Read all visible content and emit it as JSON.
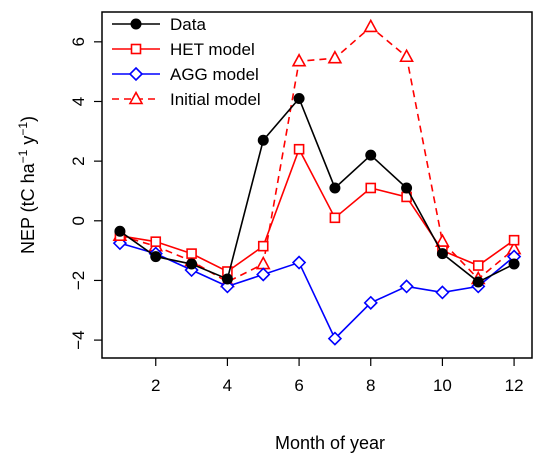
{
  "chart_data": {
    "type": "line",
    "xlabel": "Month of year",
    "ylabel_main": "NEP (tC ha",
    "ylabel_sup1": "−1",
    "ylabel_mid": " y",
    "ylabel_sup2": "−1",
    "ylabel_end": ")",
    "xlim": [
      0.5,
      12.5
    ],
    "ylim": [
      -4.6,
      7.0
    ],
    "xticks": [
      2,
      4,
      6,
      8,
      10,
      12
    ],
    "yticks": [
      -4,
      -2,
      0,
      2,
      4,
      6
    ],
    "grid": false,
    "legend_position": "top-left",
    "x": [
      1,
      2,
      3,
      4,
      5,
      6,
      7,
      8,
      9,
      10,
      11,
      12
    ],
    "series": [
      {
        "name": "Data",
        "color": "#000000",
        "marker": "filled-circle",
        "line": "solid",
        "values": [
          -0.35,
          -1.2,
          -1.45,
          -1.95,
          2.7,
          4.1,
          1.1,
          2.2,
          1.1,
          -1.1,
          -2.05,
          -1.45
        ]
      },
      {
        "name": "HET model",
        "color": "#ff0000",
        "marker": "open-square",
        "line": "solid",
        "values": [
          -0.5,
          -0.7,
          -1.1,
          -1.7,
          -0.85,
          2.4,
          0.1,
          1.1,
          0.8,
          -1.0,
          -1.5,
          -0.65
        ]
      },
      {
        "name": "AGG model",
        "color": "#0000ff",
        "marker": "open-diamond",
        "line": "solid",
        "values": [
          -0.75,
          -1.1,
          -1.65,
          -2.2,
          -1.8,
          -1.4,
          -3.95,
          -2.75,
          -2.2,
          -2.4,
          -2.2,
          -1.2
        ]
      },
      {
        "name": "Initial model",
        "color": "#ff0000",
        "marker": "open-triangle",
        "line": "dashed",
        "values": [
          -0.5,
          -0.85,
          -1.35,
          -2.05,
          -1.45,
          5.35,
          5.45,
          6.5,
          5.5,
          -0.7,
          -1.95,
          -0.95
        ]
      }
    ]
  }
}
